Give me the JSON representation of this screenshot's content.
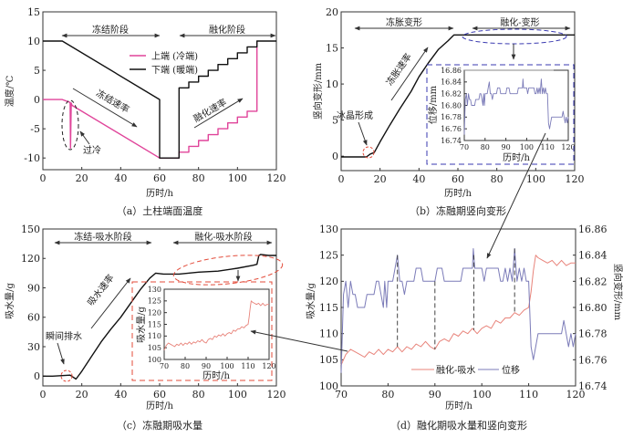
{
  "colors": {
    "cold": "#e0449a",
    "warm": "#111111",
    "water": "#e8837a",
    "disp": "#7b7bb8",
    "red_dash": "#e34b3a",
    "blue_dash": "#3a3ab0"
  },
  "chart_data": [
    {
      "id": "a",
      "type": "line",
      "caption": "（a）土柱端面温度",
      "xlabel": "历时/h",
      "ylabel": "温度/℃",
      "xlim": [
        0,
        120
      ],
      "ylim": [
        -12,
        15
      ],
      "xticks": [
        0,
        20,
        40,
        60,
        80,
        100,
        120
      ],
      "yticks": [
        -10,
        -5,
        0,
        5,
        10,
        15
      ],
      "series": [
        {
          "name": "上端 (冷端)",
          "color": "#e0449a",
          "points": [
            [
              0,
              0
            ],
            [
              10,
              0
            ],
            [
              14,
              -0.5
            ],
            [
              14.2,
              -8.3
            ],
            [
              14.6,
              -0.6
            ],
            [
              15,
              -1
            ],
            [
              60,
              -10
            ],
            [
              70,
              -10
            ],
            [
              70,
              -9
            ],
            [
              75,
              -9
            ],
            [
              75,
              -8
            ],
            [
              80,
              -8
            ],
            [
              80,
              -7
            ],
            [
              85,
              -7
            ],
            [
              85,
              -6
            ],
            [
              90,
              -6
            ],
            [
              90,
              -5
            ],
            [
              95,
              -5
            ],
            [
              95,
              -4
            ],
            [
              100,
              -4
            ],
            [
              100,
              -3
            ],
            [
              105,
              -3
            ],
            [
              105,
              -2
            ],
            [
              110,
              -2
            ],
            [
              110,
              10
            ]
          ]
        },
        {
          "name": "下端 (暖端)",
          "color": "#111111",
          "points": [
            [
              0,
              10
            ],
            [
              10,
              10
            ],
            [
              60,
              0
            ],
            [
              60,
              -10
            ],
            [
              70,
              -10
            ],
            [
              70,
              2
            ],
            [
              75,
              2
            ],
            [
              75,
              3
            ],
            [
              80,
              3
            ],
            [
              80,
              4
            ],
            [
              85,
              4
            ],
            [
              85,
              5
            ],
            [
              90,
              5
            ],
            [
              90,
              6
            ],
            [
              95,
              6
            ],
            [
              95,
              7
            ],
            [
              100,
              7
            ],
            [
              100,
              8
            ],
            [
              105,
              8
            ],
            [
              105,
              9
            ],
            [
              110,
              9
            ],
            [
              110,
              10
            ],
            [
              120,
              10
            ]
          ]
        }
      ],
      "annotations": {
        "stage1": "冻结阶段",
        "stage2": "融化阶段",
        "rate1": "冻结速率",
        "rate2": "融化速率",
        "note": "过冷"
      }
    },
    {
      "id": "b",
      "type": "line",
      "caption": "（b）冻融期竖向变形",
      "xlabel": "历时/h",
      "ylabel": "竖向变形/mm",
      "xlim": [
        0,
        120
      ],
      "ylim": [
        -2,
        20
      ],
      "xticks": [
        0,
        20,
        40,
        60,
        80,
        100,
        120
      ],
      "yticks": [
        0,
        5,
        10,
        15,
        20
      ],
      "series": [
        {
          "points": [
            [
              0,
              -0.1
            ],
            [
              13,
              -0.1
            ],
            [
              15,
              0.3
            ],
            [
              17,
              0.5
            ],
            [
              20,
              2
            ],
            [
              25,
              4.3
            ],
            [
              30,
              6.5
            ],
            [
              36,
              9
            ],
            [
              40,
              11
            ],
            [
              45,
              13
            ],
            [
              50,
              14.8
            ],
            [
              55,
              16
            ],
            [
              58,
              16.8
            ],
            [
              60,
              16.8
            ],
            [
              120,
              16.8
            ]
          ]
        }
      ],
      "annotations": {
        "stage1": "冻胀变形",
        "stage2": "融化-变形",
        "rate": "冻胀速率",
        "note": "冰晶形成"
      },
      "inset": {
        "xlabel": "历时/h",
        "ylabel": "位移/mm",
        "xlim": [
          70,
          120
        ],
        "ylim": [
          16.74,
          16.86
        ],
        "xticks": [
          70,
          80,
          90,
          100,
          110,
          120
        ],
        "yticks": [
          16.74,
          16.76,
          16.78,
          16.8,
          16.82,
          16.84,
          16.86
        ]
      }
    },
    {
      "id": "c",
      "type": "line",
      "caption": "（c）冻融期吸水量",
      "xlabel": "历时/h",
      "ylabel": "吸水量/g",
      "xlim": [
        0,
        120
      ],
      "ylim": [
        -10,
        150
      ],
      "xticks": [
        0,
        20,
        40,
        60,
        80,
        100,
        120
      ],
      "yticks": [
        0,
        30,
        60,
        90,
        120,
        150
      ],
      "series": [
        {
          "points": [
            [
              0,
              0
            ],
            [
              5,
              0
            ],
            [
              10,
              0.5
            ],
            [
              14,
              1
            ],
            [
              17,
              -3
            ],
            [
              20,
              5
            ],
            [
              25,
              20
            ],
            [
              30,
              35
            ],
            [
              35,
              48
            ],
            [
              40,
              60
            ],
            [
              45,
              74
            ],
            [
              50,
              88
            ],
            [
              55,
              100
            ],
            [
              58,
              105
            ],
            [
              62,
              104
            ],
            [
              70,
              104
            ],
            [
              80,
              106
            ],
            [
              90,
              107
            ],
            [
              100,
              110
            ],
            [
              108,
              113
            ],
            [
              110,
              114
            ],
            [
              111,
              123
            ],
            [
              112,
              124
            ],
            [
              116,
              123
            ],
            [
              120,
              123
            ]
          ]
        }
      ],
      "annotations": {
        "stage1": "冻结-吸水阶段",
        "stage2": "融化-吸水阶段",
        "rate": "吸水速率",
        "note": "瞬间排水"
      },
      "inset": {
        "xlabel": "历时/h",
        "ylabel": "吸水量/g",
        "xlim": [
          70,
          120
        ],
        "ylim": [
          100,
          130
        ],
        "xticks": [
          70,
          80,
          90,
          100,
          110,
          120
        ],
        "yticks": [
          100,
          105,
          110,
          115,
          120,
          125,
          130
        ]
      }
    },
    {
      "id": "d",
      "type": "line",
      "caption": "（d）融化期吸水量和竖向变形",
      "xlabel": "历时/h",
      "ylabel": "吸水量/g",
      "y2label": "竖向变形/mm",
      "xlim": [
        70,
        120
      ],
      "ylim": [
        100,
        130
      ],
      "y2lim": [
        16.74,
        16.86
      ],
      "xticks": [
        70,
        80,
        90,
        100,
        110,
        120
      ],
      "yticks": [
        100,
        105,
        110,
        115,
        120,
        125,
        130
      ],
      "y2ticks": [
        16.74,
        16.76,
        16.78,
        16.8,
        16.82,
        16.84,
        16.86
      ],
      "legend": "bottom-center",
      "series": [
        {
          "name": "融化-吸水",
          "axis": "left",
          "color": "#e8837a",
          "points": [
            [
              70,
              104
            ],
            [
              71,
              106
            ],
            [
              72,
              107
            ],
            [
              73,
              106.5
            ],
            [
              74,
              106
            ],
            [
              75,
              105.5
            ],
            [
              76,
              106.5
            ],
            [
              77,
              106
            ],
            [
              78,
              107
            ],
            [
              79,
              106
            ],
            [
              80,
              107
            ],
            [
              81,
              106.5
            ],
            [
              82,
              107.5
            ],
            [
              83,
              106.5
            ],
            [
              84,
              107.5
            ],
            [
              85,
              107
            ],
            [
              86,
              108
            ],
            [
              87,
              107.5
            ],
            [
              88,
              108.5
            ],
            [
              89,
              107.5
            ],
            [
              90,
              107
            ],
            [
              91,
              108.5
            ],
            [
              92,
              109
            ],
            [
              93,
              108.5
            ],
            [
              94,
              110
            ],
            [
              95,
              109.5
            ],
            [
              96,
              110.5
            ],
            [
              97,
              110
            ],
            [
              98,
              111
            ],
            [
              99,
              110
            ],
            [
              100,
              111
            ],
            [
              101,
              111.5
            ],
            [
              102,
              111
            ],
            [
              103,
              112.5
            ],
            [
              104,
              112
            ],
            [
              105,
              113
            ],
            [
              106,
              113
            ],
            [
              107,
              114
            ],
            [
              108,
              113.5
            ],
            [
              109,
              114.5
            ],
            [
              110,
              115
            ],
            [
              110.5,
              118
            ],
            [
              111,
              122
            ],
            [
              111.5,
              125
            ],
            [
              112,
              124.5
            ],
            [
              113,
              124
            ],
            [
              114,
              123.5
            ],
            [
              115,
              124
            ],
            [
              116,
              123
            ],
            [
              117,
              124
            ],
            [
              118,
              123
            ],
            [
              119,
              123.5
            ],
            [
              120,
              123.5
            ]
          ]
        },
        {
          "name": "位移",
          "axis": "right",
          "color": "#7b7bb8",
          "points": [
            [
              70,
              16.75
            ],
            [
              70.5,
              16.81
            ],
            [
              71,
              16.82
            ],
            [
              71.5,
              16.8
            ],
            [
              72,
              16.82
            ],
            [
              72.5,
              16.81
            ],
            [
              73,
              16.81
            ],
            [
              73.5,
              16.8
            ],
            [
              75,
              16.8
            ],
            [
              75.5,
              16.81
            ],
            [
              77,
              16.81
            ],
            [
              77.5,
              16.82
            ],
            [
              78,
              16.82
            ],
            [
              78.5,
              16.81
            ],
            [
              79,
              16.8
            ],
            [
              79.3,
              16.82
            ],
            [
              79.7,
              16.8
            ],
            [
              80,
              16.82
            ],
            [
              81,
              16.82
            ],
            [
              81.5,
              16.83
            ],
            [
              82,
              16.84
            ],
            [
              82.5,
              16.82
            ],
            [
              83,
              16.82
            ],
            [
              83.5,
              16.81
            ],
            [
              84,
              16.82
            ],
            [
              85.5,
              16.82
            ],
            [
              86,
              16.83
            ],
            [
              87,
              16.83
            ],
            [
              87.5,
              16.82
            ],
            [
              90,
              16.82
            ],
            [
              90.5,
              16.83
            ],
            [
              91.5,
              16.83
            ],
            [
              92,
              16.82
            ],
            [
              95.5,
              16.82
            ],
            [
              96,
              16.83
            ],
            [
              98,
              16.83
            ],
            [
              98.2,
              16.845
            ],
            [
              98.5,
              16.83
            ],
            [
              100,
              16.83
            ],
            [
              100.5,
              16.82
            ],
            [
              101,
              16.83
            ],
            [
              103.5,
              16.83
            ],
            [
              104,
              16.82
            ],
            [
              104.5,
              16.82
            ],
            [
              105,
              16.83
            ],
            [
              105.5,
              16.82
            ],
            [
              106,
              16.83
            ],
            [
              106.5,
              16.82
            ],
            [
              107,
              16.845
            ],
            [
              107.5,
              16.82
            ],
            [
              108,
              16.83
            ],
            [
              108.5,
              16.82
            ],
            [
              109,
              16.83
            ],
            [
              109.5,
              16.82
            ],
            [
              110,
              16.82
            ],
            [
              110.5,
              16.77
            ],
            [
              111,
              16.76
            ],
            [
              111.5,
              16.77
            ],
            [
              112,
              16.78
            ],
            [
              117,
              16.78
            ],
            [
              117.5,
              16.79
            ],
            [
              118,
              16.78
            ],
            [
              118.5,
              16.77
            ],
            [
              119,
              16.78
            ],
            [
              119.5,
              16.77
            ],
            [
              120,
              16.78
            ]
          ]
        }
      ],
      "dashed_markers_x": [
        82,
        90,
        98.3,
        107
      ]
    }
  ]
}
